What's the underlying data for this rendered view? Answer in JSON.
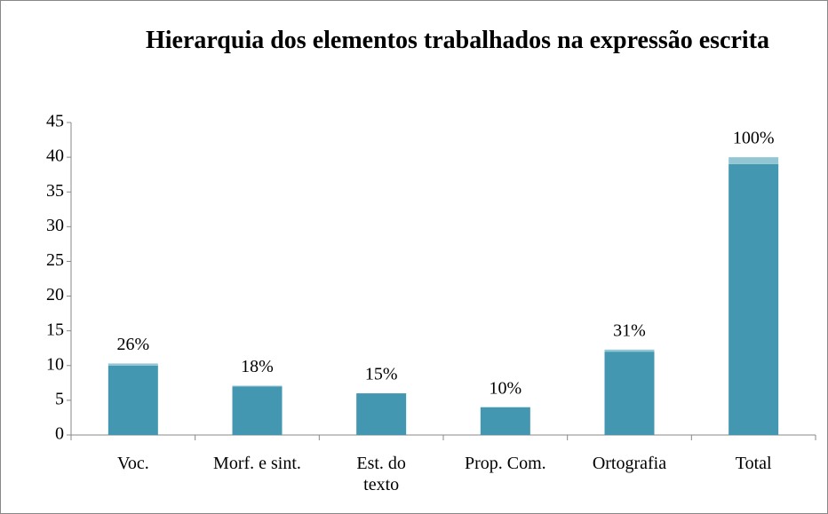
{
  "chart_data": {
    "type": "bar",
    "stacked": true,
    "title": "Hierarquia dos elementos trabalhados na expressão escrita",
    "categories": [
      "Voc.",
      "Morf. e sint.",
      "Est. do texto",
      "Prop. Com.",
      "Ortografia",
      "Total"
    ],
    "series": [
      {
        "color": "#4397b0",
        "values": [
          10,
          7,
          6,
          4,
          12,
          39
        ]
      },
      {
        "color": "#93c6d3",
        "values": [
          0.3,
          0.1,
          0,
          0,
          0.3,
          1
        ]
      }
    ],
    "annotations": [
      "26%",
      "18%",
      "15%",
      "10%",
      "31%",
      "100%"
    ],
    "ylim": [
      0,
      45
    ],
    "yticks": [
      0,
      5,
      10,
      15,
      20,
      25,
      30,
      35,
      40,
      45
    ],
    "grid": false
  }
}
